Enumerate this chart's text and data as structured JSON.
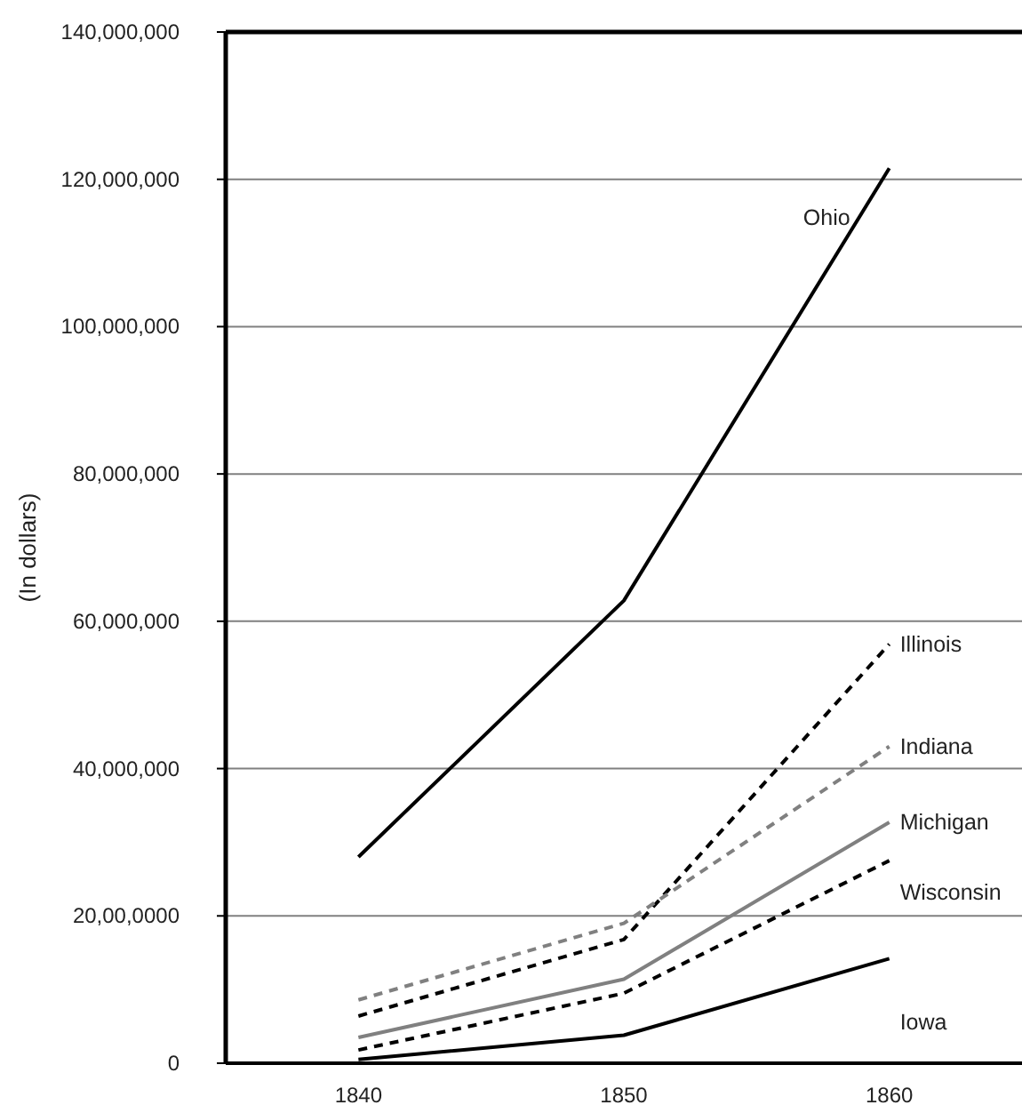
{
  "chart_data": {
    "type": "line",
    "ylabel": "(In dollars)",
    "categories": [
      "1840",
      "1850",
      "1860"
    ],
    "ylim": [
      0,
      140000000
    ],
    "yticks": [
      {
        "value": 0,
        "label": "0"
      },
      {
        "value": 20000000,
        "label": "20,00,0000"
      },
      {
        "value": 40000000,
        "label": "40,000,000"
      },
      {
        "value": 60000000,
        "label": "60,000,000"
      },
      {
        "value": 80000000,
        "label": "80,000,000"
      },
      {
        "value": 100000000,
        "label": "100,000,000"
      },
      {
        "value": 120000000,
        "label": "120,000,000"
      },
      {
        "value": 140000000,
        "label": "140,000,000"
      }
    ],
    "grid": "y",
    "marker": "none",
    "series": [
      {
        "name": "Ohio",
        "color": "#000000",
        "line_style": "solid",
        "values": [
          28000000,
          62800000,
          121500000
        ]
      },
      {
        "name": "Illinois",
        "color": "#000000",
        "line_style": "dashed",
        "values": [
          6400000,
          16800000,
          56900000
        ]
      },
      {
        "name": "Indiana",
        "color": "#808080",
        "line_style": "dashed",
        "values": [
          8600000,
          19000000,
          43000000
        ]
      },
      {
        "name": "Michigan",
        "color": "#808080",
        "line_style": "solid",
        "values": [
          3500000,
          11400000,
          32700000
        ]
      },
      {
        "name": "Wisconsin",
        "color": "#000000",
        "line_style": "dashed",
        "values": [
          1800000,
          9500000,
          27500000
        ]
      },
      {
        "name": "Iowa",
        "color": "#000000",
        "line_style": "solid",
        "values": [
          500000,
          3800000,
          14200000
        ]
      }
    ]
  }
}
